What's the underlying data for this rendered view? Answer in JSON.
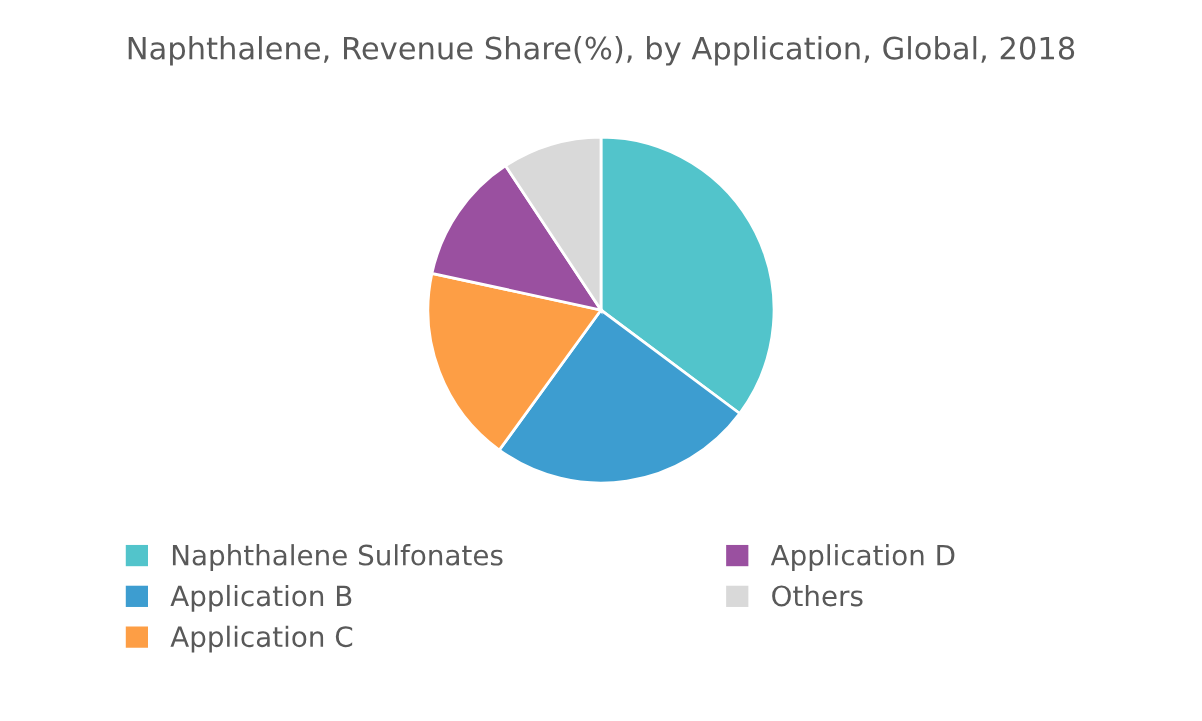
{
  "chart_data": {
    "type": "pie",
    "title": "Naphthalene, Revenue Share(%), by Application, Global, 2018",
    "categories": [
      "Naphthalene Sulfonates",
      "Application B",
      "Application C",
      "Application D",
      "Others"
    ],
    "values": [
      35.2,
      24.8,
      18.4,
      12.3,
      9.3
    ],
    "colors": [
      "#52c4cb",
      "#3d9dd0",
      "#fd9e45",
      "#9a50a0",
      "#d9d9d9"
    ],
    "legend": "bottom"
  }
}
